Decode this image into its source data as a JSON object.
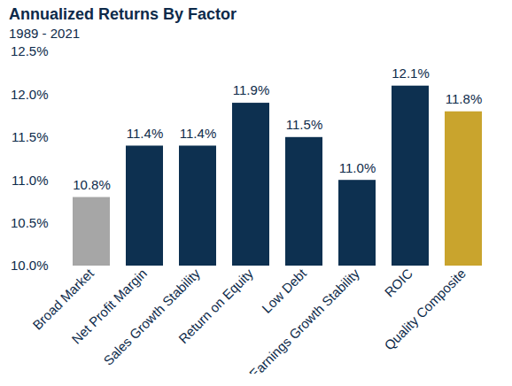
{
  "chart_data": {
    "type": "bar",
    "title": "Annualized Returns By Factor",
    "subtitle": "1989 - 2021",
    "categories": [
      "Broad Market",
      "Net Profit Margin",
      "Sales Growth Stability",
      "Return on Equity",
      "Low Debt",
      "Earnings Growth Stability",
      "ROIC",
      "Quality Composite"
    ],
    "values": [
      10.8,
      11.4,
      11.4,
      11.9,
      11.5,
      11.0,
      12.1,
      11.8
    ],
    "value_labels": [
      "10.8%",
      "11.4%",
      "11.4%",
      "11.9%",
      "11.5%",
      "11.0%",
      "12.1%",
      "11.8%"
    ],
    "colors": [
      "#a6a6a6",
      "#0d3050",
      "#0d3050",
      "#0d3050",
      "#0d3050",
      "#0d3050",
      "#0d3050",
      "#c9a42d"
    ],
    "ylim": [
      10.0,
      12.5
    ],
    "yticks": [
      {
        "value": 10.0,
        "label": "10.0%"
      },
      {
        "value": 10.5,
        "label": "10.5%"
      },
      {
        "value": 11.0,
        "label": "11.0%"
      },
      {
        "value": 11.5,
        "label": "11.5%"
      },
      {
        "value": 12.0,
        "label": "12.0%"
      },
      {
        "value": 12.5,
        "label": "12.5%"
      }
    ],
    "grid": false,
    "data_labels": true
  }
}
